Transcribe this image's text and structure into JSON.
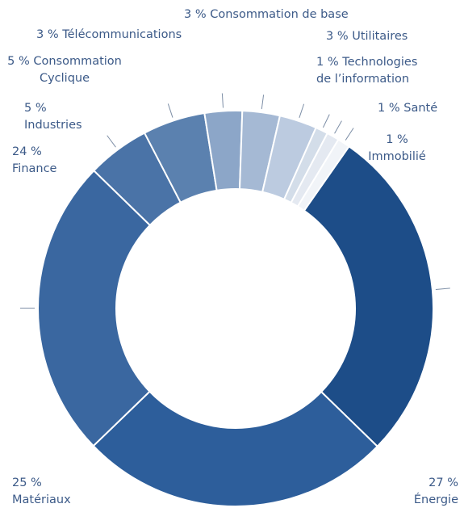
{
  "chart_data": {
    "type": "donut",
    "categories": [
      "Énergie",
      "Matériaux",
      "Finance",
      "Industries",
      "Consommation Cyclique",
      "Télécommunications",
      "Consommation de base",
      "Utilitaires",
      "Technologies de l’information",
      "Santé",
      "Immobilié"
    ],
    "values": [
      27,
      25,
      24,
      5,
      5,
      3,
      3,
      3,
      1,
      1,
      1
    ],
    "value_labels": [
      "27 %",
      "25 %",
      "24 %",
      "5 %",
      "5 %",
      "3 %",
      "3 %",
      "3 %",
      "1 %",
      "1 %",
      "1 %"
    ],
    "colors": [
      "#1d4d88",
      "#2d5e9b",
      "#3a67a0",
      "#4a73a7",
      "#5b81af",
      "#8ca6c8",
      "#a5b9d4",
      "#bccbe0",
      "#d3dde9",
      "#e4e9f1",
      "#f1f4f8"
    ]
  }
}
